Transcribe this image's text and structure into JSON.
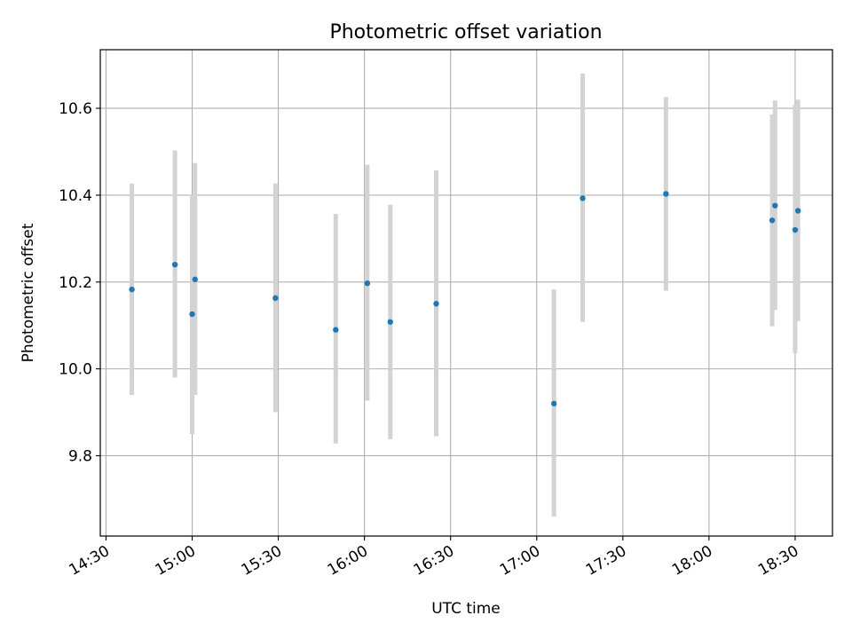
{
  "chart_data": {
    "type": "scatter",
    "title": "Photometric offset variation",
    "xlabel": "UTC time",
    "ylabel": "Photometric offset",
    "x_ticks": [
      "14:30",
      "15:00",
      "15:30",
      "16:00",
      "16:30",
      "17:00",
      "17:30",
      "18:00",
      "18:30"
    ],
    "y_ticks": [
      "9.8",
      "10.0",
      "10.2",
      "10.4",
      "10.6"
    ],
    "xlim": [
      "14:28",
      "18:43"
    ],
    "ylim": [
      9.615,
      10.735
    ],
    "grid": true,
    "marker_color": "#1f77b4",
    "errorbar_color": "#d3d3d3",
    "points": [
      {
        "x": "14:39",
        "y": 10.183,
        "lo": 9.94,
        "hi": 10.427
      },
      {
        "x": "14:54",
        "y": 10.24,
        "lo": 9.98,
        "hi": 10.503
      },
      {
        "x": "15:00",
        "y": 10.126,
        "lo": 9.85,
        "hi": 10.4
      },
      {
        "x": "15:01",
        "y": 10.206,
        "lo": 9.94,
        "hi": 10.474
      },
      {
        "x": "15:29",
        "y": 10.163,
        "lo": 9.9,
        "hi": 10.427
      },
      {
        "x": "15:50",
        "y": 10.09,
        "lo": 9.828,
        "hi": 10.357
      },
      {
        "x": "16:01",
        "y": 10.197,
        "lo": 9.927,
        "hi": 10.47
      },
      {
        "x": "16:09",
        "y": 10.108,
        "lo": 9.838,
        "hi": 10.378
      },
      {
        "x": "16:25",
        "y": 10.15,
        "lo": 9.845,
        "hi": 10.457
      },
      {
        "x": "17:06",
        "y": 9.92,
        "lo": 9.66,
        "hi": 10.183
      },
      {
        "x": "17:16",
        "y": 10.393,
        "lo": 10.108,
        "hi": 10.68
      },
      {
        "x": "17:45",
        "y": 10.403,
        "lo": 10.18,
        "hi": 10.626
      },
      {
        "x": "18:22",
        "y": 10.342,
        "lo": 10.098,
        "hi": 10.586
      },
      {
        "x": "18:23",
        "y": 10.376,
        "lo": 10.136,
        "hi": 10.618
      },
      {
        "x": "18:30",
        "y": 10.32,
        "lo": 10.036,
        "hi": 10.608
      },
      {
        "x": "18:31",
        "y": 10.364,
        "lo": 10.11,
        "hi": 10.62
      }
    ]
  }
}
